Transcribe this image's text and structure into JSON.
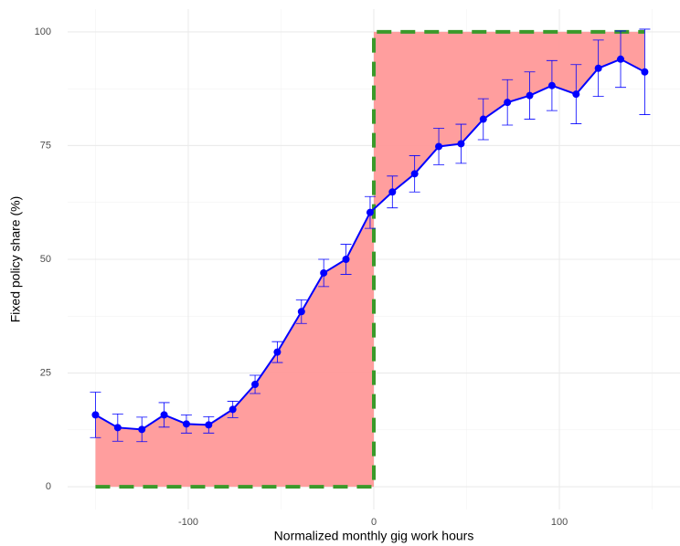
{
  "chart_data": {
    "type": "line",
    "x_label": "Normalized monthly gig work hours",
    "y_label": "Fixed policy share (%)",
    "x": [
      -150,
      -138,
      -125,
      -113,
      -101,
      -89,
      -76,
      -64,
      -52,
      -39,
      -27,
      -15,
      -2,
      10,
      22,
      35,
      47,
      59,
      72,
      84,
      96,
      109,
      121,
      133,
      146
    ],
    "series": [
      {
        "color": "#0000ff",
        "values": [
          15.8,
          13,
          12.6,
          15.8,
          13.8,
          13.6,
          17,
          22.5,
          29.6,
          38.5,
          47,
          50,
          60.3,
          64.8,
          68.8,
          74.8,
          75.4,
          80.8,
          84.5,
          86,
          88.2,
          86.3,
          92,
          94,
          91.2
        ],
        "errors": [
          5,
          3,
          2.7,
          2.7,
          2,
          1.8,
          1.8,
          2,
          2.3,
          2.6,
          3,
          3.3,
          3.5,
          3.5,
          4,
          4,
          4.3,
          4.5,
          5,
          5.2,
          5.5,
          6.5,
          6.2,
          6.2,
          9.4
        ]
      }
    ],
    "cutoff": 0,
    "step_low": 0,
    "step_high": 100,
    "fill_color": "#ff9999",
    "step_color": "#3a9a2a",
    "xlim": [
      -165,
      165
    ],
    "ylim": [
      -5,
      105
    ],
    "xticks": [
      -100,
      0,
      100
    ],
    "yticks": [
      0,
      25,
      50,
      75,
      100
    ],
    "xminor": [
      -150,
      -50,
      50,
      150
    ],
    "yminor": [
      12.5,
      37.5,
      62.5,
      87.5
    ],
    "grid": true
  }
}
